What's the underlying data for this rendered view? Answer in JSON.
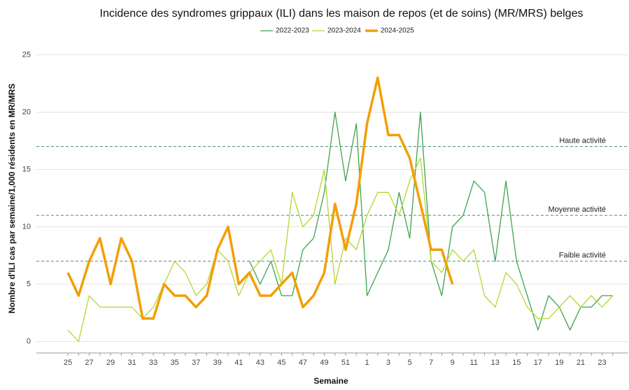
{
  "chart_data": {
    "type": "line",
    "title": "Incidence des syndromes grippaux (ILI) dans les maison de repos (et de soins) (MR/MRS) belges",
    "x_label": "Semaine",
    "y_label": "Nombre d'ILI cas par semaine/1,000 résidents en MR/MRS",
    "categories": [
      "25",
      null,
      "27",
      null,
      "29",
      null,
      "31",
      null,
      "33",
      null,
      "35",
      null,
      "37",
      null,
      "39",
      null,
      "41",
      null,
      "43",
      null,
      "45",
      null,
      "47",
      null,
      "49",
      null,
      "51",
      null,
      "1",
      null,
      "3",
      null,
      "5",
      null,
      "7",
      null,
      "9",
      null,
      "11",
      null,
      "13",
      null,
      "15",
      null,
      "17",
      null,
      "19",
      null,
      "21",
      null,
      "23",
      null
    ],
    "series": [
      {
        "name": "2022-2023",
        "color": "#3fa34d",
        "width": 1.3,
        "values": [
          null,
          null,
          null,
          null,
          null,
          null,
          null,
          null,
          null,
          null,
          null,
          null,
          null,
          null,
          null,
          null,
          null,
          7,
          5,
          7,
          4,
          4,
          8,
          9,
          13,
          20,
          14,
          19,
          4,
          6,
          8,
          13,
          9,
          20,
          7,
          4,
          10,
          11,
          14,
          13,
          7,
          14,
          7,
          4,
          1,
          4,
          3,
          1,
          3,
          3,
          4,
          4
        ]
      },
      {
        "name": "2023-2024",
        "color": "#b5d630",
        "width": 1.3,
        "values": [
          1,
          0,
          4,
          3,
          3,
          3,
          3,
          2,
          3,
          5,
          7,
          6,
          4,
          5,
          8,
          7,
          4,
          6,
          7,
          8,
          5,
          13,
          10,
          11,
          15,
          5,
          9,
          8,
          11,
          13,
          13,
          11,
          14,
          16,
          7,
          6,
          8,
          7,
          8,
          4,
          3,
          6,
          5,
          3,
          2,
          2,
          3,
          4,
          3,
          4,
          3,
          4
        ]
      },
      {
        "name": "2024-2025",
        "color": "#f29f05",
        "width": 3.5,
        "values": [
          6,
          4,
          7,
          9,
          5,
          9,
          7,
          2,
          2,
          5,
          4,
          4,
          3,
          4,
          8,
          10,
          5,
          6,
          4,
          4,
          5,
          6,
          3,
          4,
          6,
          12,
          8,
          12,
          19,
          23,
          18,
          18,
          16,
          12,
          8,
          8,
          5,
          null,
          null,
          null,
          null,
          null,
          null,
          null,
          null,
          null,
          null,
          null,
          null,
          null,
          null,
          null
        ]
      }
    ],
    "reference_lines": [
      {
        "value": 17,
        "label": "Haute activité"
      },
      {
        "value": 11,
        "label": "Moyenne activité"
      },
      {
        "value": 7,
        "label": "Faible activité"
      }
    ],
    "ylim": [
      -1,
      26
    ],
    "yticks": [
      0,
      5,
      10,
      15,
      20,
      25
    ],
    "grid": true
  }
}
